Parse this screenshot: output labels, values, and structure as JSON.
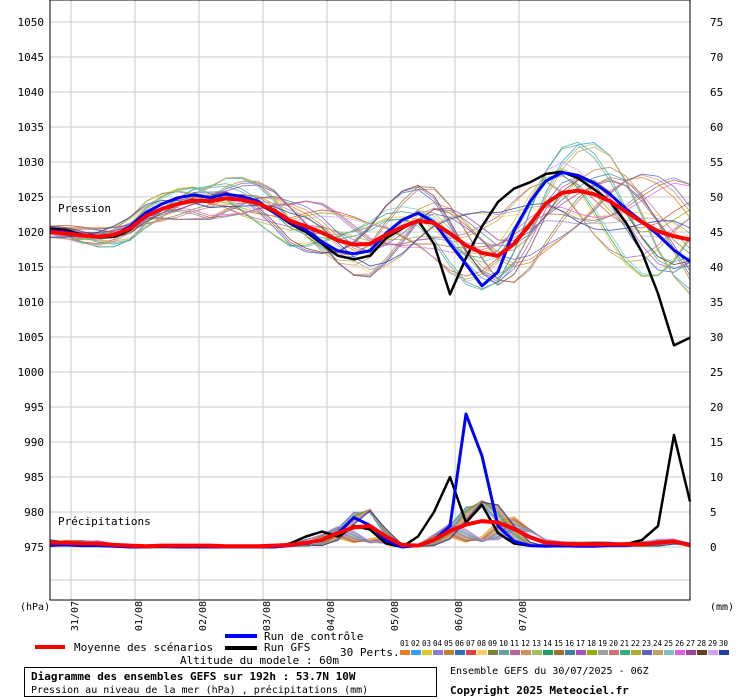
{
  "chart_data": {
    "type": "line",
    "left_axis": {
      "unit_label": "(hPa)",
      "ticks": [
        1050,
        1045,
        1040,
        1035,
        1030,
        1025,
        1020,
        1015,
        1010,
        1005,
        1000,
        995,
        990,
        985,
        980,
        975
      ],
      "range": [
        975,
        1050
      ]
    },
    "right_axis": {
      "unit_label": "(mm)",
      "ticks": [
        75,
        70,
        65,
        60,
        55,
        50,
        45,
        40,
        35,
        30,
        25,
        20,
        15,
        10,
        5,
        0
      ],
      "range": [
        0,
        75
      ]
    },
    "x_ticks": [
      "31/07",
      "01/08",
      "02/08",
      "03/08",
      "04/08",
      "05/08",
      "06/08",
      "07/08"
    ],
    "x_range_hours": [
      0,
      192
    ],
    "x_step_hours": 6,
    "annotations": {
      "pressure": "Pression",
      "precip": "Précipitations"
    },
    "series": [
      {
        "name": "Moyenne des scénarios",
        "axis": "pressure",
        "color": "#ff0000",
        "values": [
          1020,
          1019.8,
          1019.5,
          1019.3,
          1019.6,
          1020.5,
          1022.3,
          1023.3,
          1024,
          1024.5,
          1024.4,
          1024.8,
          1024.6,
          1024.1,
          1023.1,
          1021.6,
          1020.8,
          1019.9,
          1018.8,
          1018.2,
          1018.3,
          1019.6,
          1020.7,
          1021.6,
          1021.3,
          1019.8,
          1018.1,
          1017,
          1016.6,
          1018.3,
          1021.1,
          1024.1,
          1025.6,
          1025.9,
          1025.4,
          1024.4,
          1022.9,
          1021.4,
          1020.1,
          1019.4,
          1018.9
        ]
      },
      {
        "name": "Run de contrôle",
        "axis": "pressure",
        "color": "#0000ff",
        "values": [
          1020.2,
          1020,
          1019.5,
          1019.3,
          1019.5,
          1020.8,
          1022.8,
          1024,
          1024.9,
          1025.3,
          1024.9,
          1025.4,
          1025.1,
          1024.4,
          1022.8,
          1021.4,
          1020.3,
          1018.6,
          1017.3,
          1016.9,
          1017.3,
          1019.8,
          1021.7,
          1022.7,
          1021.4,
          1018.3,
          1015.4,
          1012.3,
          1014.3,
          1020.2,
          1024.3,
          1027.3,
          1028.5,
          1028.1,
          1027,
          1025.4,
          1023.3,
          1021.5,
          1019.6,
          1017.4,
          1015.8
        ]
      },
      {
        "name": "Run GFS",
        "axis": "pressure",
        "color": "#000000",
        "values": [
          1020.5,
          1020.3,
          1019.6,
          1019.2,
          1019.3,
          1020.3,
          1022.3,
          1023.4,
          1024.1,
          1024.6,
          1024.4,
          1024.9,
          1024.6,
          1024,
          1022.8,
          1021.2,
          1020,
          1018.3,
          1016.6,
          1016.1,
          1016.6,
          1019.1,
          1020.5,
          1021.7,
          1018.3,
          1011.1,
          1016.3,
          1020.8,
          1024.3,
          1026.2,
          1027.1,
          1028.3,
          1028.6,
          1027.7,
          1026.1,
          1024.4,
          1021.3,
          1017.1,
          1011.2,
          1003.8,
          1004.9
        ]
      },
      {
        "name": "Moyenne des scénarios",
        "axis": "precip",
        "color": "#ff0000",
        "values": [
          0.6,
          0.6,
          0.5,
          0.5,
          0.3,
          0.2,
          0.1,
          0.2,
          0.2,
          0.2,
          0.2,
          0.1,
          0.1,
          0.1,
          0.2,
          0.3,
          0.6,
          1,
          2,
          2.8,
          3,
          1.5,
          0.3,
          0.2,
          1,
          2.3,
          3.2,
          3.7,
          3.5,
          2.6,
          1.4,
          0.6,
          0.5,
          0.4,
          0.4,
          0.4,
          0.4,
          0.4,
          0.6,
          0.8,
          0.3
        ]
      },
      {
        "name": "Run de contrôle",
        "axis": "precip",
        "color": "#0000ff",
        "values": [
          0.3,
          0.3,
          0.2,
          0.2,
          0.1,
          0,
          0,
          0.1,
          0,
          0,
          0,
          0,
          0,
          0,
          0,
          0.2,
          0.5,
          1,
          2,
          4.2,
          3.1,
          1,
          0,
          0.2,
          1,
          3,
          19,
          13,
          3,
          0.8,
          0.2,
          0.1,
          0.2,
          0.1,
          0.1,
          0.2,
          0.2,
          0.4,
          0.6,
          0.8,
          0.2
        ]
      },
      {
        "name": "Run GFS",
        "axis": "precip",
        "color": "#000000",
        "values": [
          0.2,
          0.3,
          0.2,
          0.2,
          0.1,
          0,
          0,
          0,
          0,
          0,
          0,
          0,
          0,
          0,
          0,
          0.5,
          1.5,
          2.2,
          1.5,
          3,
          2.5,
          0.5,
          0,
          1.5,
          5,
          10,
          3.5,
          6,
          2,
          0.5,
          0.2,
          0.1,
          0.1,
          0.2,
          0.2,
          0.2,
          0.4,
          1,
          3,
          16,
          6.5
        ]
      }
    ]
  },
  "legend": {
    "mean_label": "Moyenne des scénarios",
    "control_label": "Run de contrôle",
    "gfs_label": "Run GFS",
    "perts_label": "30 Perts.",
    "altitude_label": "Altitude du modele : 60m",
    "pert_numbers": [
      "01",
      "02",
      "03",
      "04",
      "05",
      "06",
      "07",
      "08",
      "09",
      "10",
      "11",
      "12",
      "13",
      "14",
      "15",
      "16",
      "17",
      "18",
      "19",
      "20",
      "21",
      "22",
      "23",
      "24",
      "25",
      "26",
      "27",
      "28",
      "29",
      "30"
    ],
    "pert_colors": [
      "#e87e21",
      "#30a0f0",
      "#e4c61c",
      "#8c7ad6",
      "#c08030",
      "#2c6ec0",
      "#e04040",
      "#ffcc66",
      "#808040",
      "#60a0a0",
      "#c06090",
      "#d09060",
      "#a0c060",
      "#20a060",
      "#a07030",
      "#4080a0",
      "#b050c0",
      "#90b000",
      "#a0a0a0",
      "#d07070",
      "#30b080",
      "#b0b030",
      "#6060c0",
      "#c0a060",
      "#80c0c0",
      "#e060e0",
      "#a040a0",
      "#604020",
      "#d0a0ff",
      "#2040a0"
    ]
  },
  "footer": {
    "title": "Diagramme des ensembles GEFS sur 192h : 53.7N 10W",
    "subtitle": "Pression au niveau de la mer (hPa) , précipitations (mm)",
    "ensemble_date": "Ensemble GEFS du 30/07/2025 - 06Z",
    "copyright": "Copyright 2025 Meteociel.fr"
  }
}
